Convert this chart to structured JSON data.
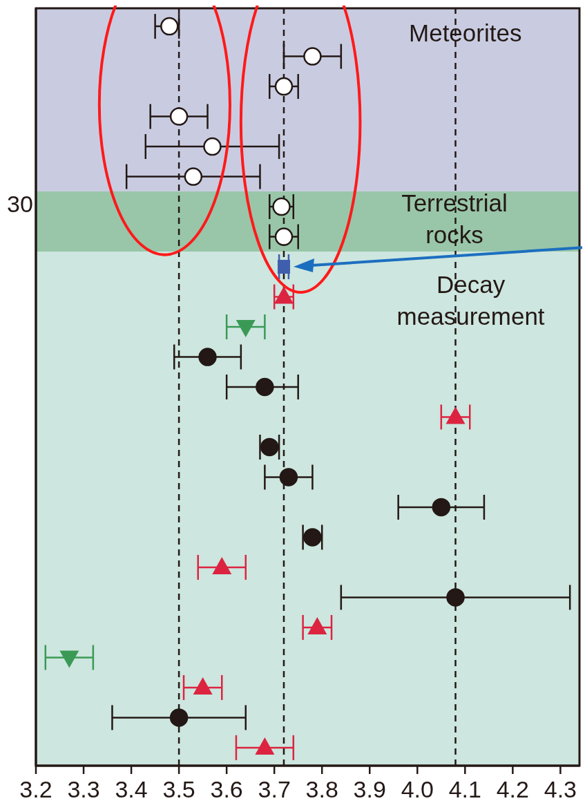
{
  "chart_data": {
    "type": "scatter",
    "orientation": "horizontal",
    "categories": [
      null,
      null,
      null,
      null,
      null,
      null,
      null,
      null,
      null,
      null,
      null,
      null,
      null,
      null,
      null,
      null,
      null,
      null,
      null,
      null,
      null,
      null,
      null,
      null,
      null
    ],
    "series": [
      {
        "color": "#ffffff",
        "marker": "circle",
        "values": [
          3.48,
          3.78,
          3.72,
          3.5,
          3.57,
          3.53,
          3.715,
          3.72,
          null,
          null,
          null,
          null,
          null,
          null,
          null,
          null,
          null,
          null,
          null,
          null,
          null,
          null,
          null,
          null,
          null
        ],
        "errors": [
          [
            3.45,
            3.5
          ],
          [
            3.72,
            3.84
          ],
          [
            3.69,
            3.75
          ],
          [
            3.44,
            3.56
          ],
          [
            3.43,
            3.71
          ],
          [
            3.39,
            3.67
          ],
          [
            3.69,
            3.74
          ],
          [
            3.69,
            3.75
          ],
          null,
          null,
          null,
          null,
          null,
          null,
          null,
          null,
          null,
          null,
          null,
          null,
          null,
          null,
          null,
          null,
          null
        ]
      },
      {
        "color": "#3f5fae",
        "marker": "square",
        "values": [
          null,
          null,
          null,
          null,
          null,
          null,
          null,
          null,
          3.72,
          null,
          null,
          null,
          null,
          null,
          null,
          null,
          null,
          null,
          null,
          null,
          null,
          null,
          null,
          null,
          null
        ],
        "errors": [
          null,
          null,
          null,
          null,
          null,
          null,
          null,
          null,
          [
            3.71,
            3.73
          ],
          null,
          null,
          null,
          null,
          null,
          null,
          null,
          null,
          null,
          null,
          null,
          null,
          null,
          null,
          null,
          null
        ]
      },
      {
        "color": "#dc2440",
        "marker": "triangle",
        "values": [
          null,
          null,
          null,
          null,
          null,
          null,
          null,
          null,
          null,
          3.72,
          null,
          null,
          null,
          4.08,
          null,
          null,
          null,
          null,
          3.59,
          null,
          3.79,
          null,
          3.55,
          null,
          3.68
        ],
        "errors": [
          null,
          null,
          null,
          null,
          null,
          null,
          null,
          null,
          null,
          [
            3.7,
            3.74
          ],
          null,
          null,
          null,
          [
            4.05,
            4.11
          ],
          null,
          null,
          null,
          null,
          [
            3.54,
            3.64
          ],
          null,
          [
            3.76,
            3.82
          ],
          null,
          [
            3.51,
            3.59
          ],
          null,
          [
            3.62,
            3.74
          ]
        ]
      },
      {
        "color": "#3a9a55",
        "marker": "triangle-down",
        "values": [
          null,
          null,
          null,
          null,
          null,
          null,
          null,
          null,
          null,
          null,
          3.64,
          null,
          null,
          null,
          null,
          null,
          null,
          null,
          null,
          null,
          null,
          3.27,
          null,
          null,
          null
        ],
        "errors": [
          null,
          null,
          null,
          null,
          null,
          null,
          null,
          null,
          null,
          null,
          [
            3.6,
            3.68
          ],
          null,
          null,
          null,
          null,
          null,
          null,
          null,
          null,
          null,
          null,
          [
            3.22,
            3.32
          ],
          null,
          null,
          null
        ]
      },
      {
        "color": "#231815",
        "marker": "circle",
        "values": [
          null,
          null,
          null,
          null,
          null,
          null,
          null,
          null,
          null,
          null,
          null,
          3.56,
          3.68,
          null,
          3.69,
          3.73,
          4.05,
          3.78,
          null,
          4.08,
          null,
          null,
          null,
          3.5,
          null
        ],
        "errors": [
          null,
          null,
          null,
          null,
          null,
          null,
          null,
          null,
          null,
          null,
          null,
          [
            3.49,
            3.63
          ],
          [
            3.6,
            3.75
          ],
          null,
          [
            3.67,
            3.71
          ],
          [
            3.68,
            3.78
          ],
          [
            3.96,
            4.14
          ],
          [
            3.76,
            3.8
          ],
          null,
          [
            3.84,
            4.32
          ],
          null,
          null,
          null,
          [
            3.36,
            3.64
          ],
          null
        ]
      }
    ],
    "xlim": [
      3.2,
      4.34
    ],
    "xticks": [
      3.2,
      3.3,
      3.4,
      3.5,
      3.6,
      3.7,
      3.8,
      3.9,
      {
        "value": 4.0,
        "label": "4.0"
      },
      4.1,
      4.2,
      4.3
    ],
    "tick_labels": "x",
    "ref_lines": [
      {
        "axis": "x",
        "value": 3.5,
        "color": "#231815",
        "line_style": "dashed"
      },
      {
        "axis": "x",
        "value": 3.72,
        "color": "#231815",
        "line_style": "dashed"
      },
      {
        "axis": "x",
        "value": 4.08,
        "color": "#231815",
        "line_style": "dashed"
      }
    ],
    "annotations": [
      "Meteorites",
      "30",
      "Terrestrial\nrocks",
      "Decay\nmeasurement"
    ]
  }
}
